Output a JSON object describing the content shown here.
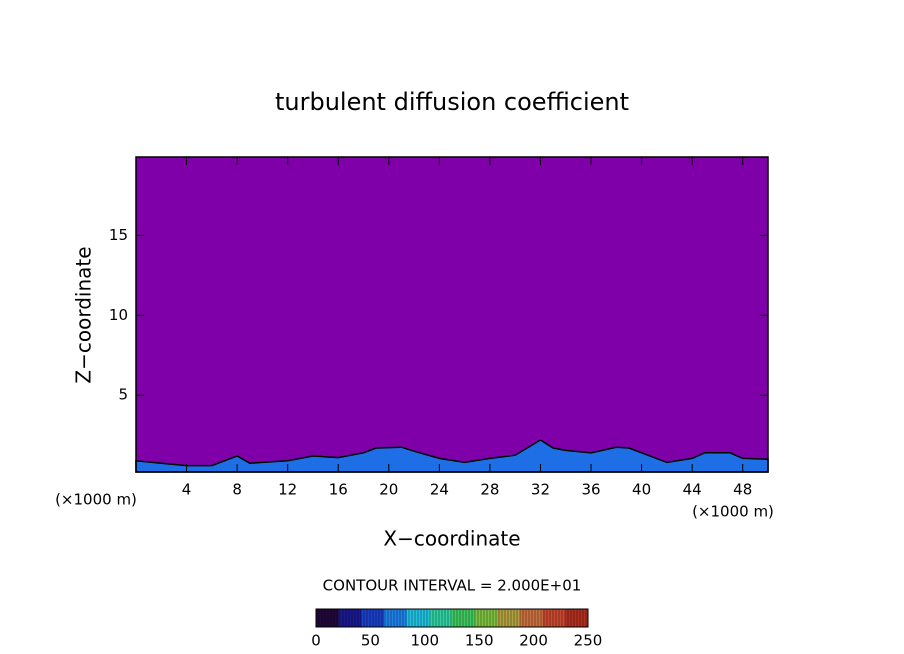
{
  "chart_data": {
    "type": "contour",
    "title": "turbulent diffusion coefficient",
    "xlabel": "X−coordinate",
    "ylabel": "Z−coordinate",
    "x_unit": "(×1000 m)",
    "y_unit": "(×1000 m)",
    "xlim": [
      0,
      50
    ],
    "ylim": [
      0.2,
      19.9
    ],
    "xticks": [
      4,
      8,
      12,
      16,
      20,
      24,
      28,
      32,
      36,
      40,
      44,
      48
    ],
    "yticks": [
      5,
      10,
      15
    ],
    "background_color": "#7f00a8",
    "series": [
      {
        "color": "#1e6ee6",
        "x": [
          0,
          2,
          4,
          6,
          7,
          8,
          9,
          10,
          12,
          14,
          16,
          18,
          19,
          21,
          22,
          24,
          26,
          28,
          30,
          32,
          33,
          34,
          36,
          38,
          39,
          40,
          42,
          44,
          45,
          47,
          48,
          50
        ],
        "values": [
          0.9,
          0.75,
          0.6,
          0.6,
          0.9,
          1.2,
          0.75,
          0.8,
          0.9,
          1.2,
          1.1,
          1.4,
          1.7,
          1.75,
          1.5,
          1.05,
          0.8,
          1.05,
          1.25,
          2.2,
          1.7,
          1.55,
          1.4,
          1.75,
          1.7,
          1.4,
          0.8,
          1.05,
          1.4,
          1.4,
          1.05,
          1.0
        ]
      }
    ],
    "contour_interval": "CONTOUR INTERVAL = 2.000E+01",
    "colorbar": {
      "clim": [
        0,
        250
      ],
      "ticks": [
        0,
        50,
        100,
        150,
        200,
        250
      ],
      "colors": [
        "#200838",
        "#1a1a90",
        "#1a40c8",
        "#1e80e8",
        "#20c0e0",
        "#30d0a0",
        "#40c860",
        "#80c040",
        "#b0a040",
        "#c87040",
        "#c84830",
        "#b03020"
      ]
    }
  }
}
